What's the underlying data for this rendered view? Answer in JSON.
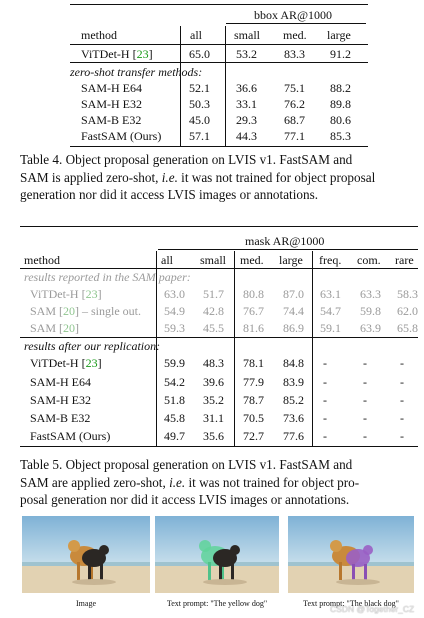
{
  "table4": {
    "header_group": "bbox AR@1000",
    "cols": [
      "method",
      "all",
      "small",
      "med.",
      "large"
    ],
    "section_label": "zero-shot transfer methods:",
    "baseline": {
      "method": "ViTDet-H",
      "cite": "23",
      "values": [
        "65.0",
        "53.2",
        "83.3",
        "91.2"
      ]
    },
    "rows": [
      {
        "method": "SAM-H E64",
        "values": [
          "52.1",
          "36.6",
          "75.1",
          "88.2"
        ]
      },
      {
        "method": "SAM-H E32",
        "values": [
          "50.3",
          "33.1",
          "76.2",
          "89.8"
        ]
      },
      {
        "method": "SAM-B E32",
        "values": [
          "45.0",
          "29.3",
          "68.7",
          "80.6"
        ]
      },
      {
        "method": "FastSAM (Ours)",
        "values": [
          "57.1",
          "44.3",
          "77.1",
          "85.3"
        ]
      }
    ],
    "caption_lines": [
      "Table 4. Object proposal generation on LVIS v1. FastSAM and",
      "SAM is applied zero-shot,",
      " it was not trained for object proposal",
      "generation nor did it access LVIS images or annotations."
    ],
    "caption_ie": "i.e."
  },
  "table5": {
    "header_group": "mask AR@1000",
    "cols": [
      "method",
      "all",
      "small",
      "med.",
      "large",
      "freq.",
      "com.",
      "rare"
    ],
    "section1_label": "results reported in the SAM paper:",
    "section1_rows": [
      {
        "method": "ViTDet-H",
        "cite": "23",
        "suffix": "",
        "values": [
          "63.0",
          "51.7",
          "80.8",
          "87.0",
          "63.1",
          "63.3",
          "58.3"
        ]
      },
      {
        "method": "SAM",
        "cite": "20",
        "suffix": " – single out.",
        "values": [
          "54.9",
          "42.8",
          "76.7",
          "74.4",
          "54.7",
          "59.8",
          "62.0"
        ]
      },
      {
        "method": "SAM",
        "cite": "20",
        "suffix": "",
        "values": [
          "59.3",
          "45.5",
          "81.6",
          "86.9",
          "59.1",
          "63.9",
          "65.8"
        ]
      }
    ],
    "section2_label": "results after our replication:",
    "section2_rows": [
      {
        "method": "ViTDet-H",
        "cite": "23",
        "values": [
          "59.9",
          "48.3",
          "78.1",
          "84.8",
          "-",
          "-",
          "-"
        ]
      },
      {
        "method": "SAM-H E64",
        "values": [
          "54.2",
          "39.6",
          "77.9",
          "83.9",
          "-",
          "-",
          "-"
        ]
      },
      {
        "method": "SAM-H E32",
        "values": [
          "51.8",
          "35.2",
          "78.7",
          "85.2",
          "-",
          "-",
          "-"
        ]
      },
      {
        "method": "SAM-B E32",
        "values": [
          "45.8",
          "31.1",
          "70.5",
          "73.6",
          "-",
          "-",
          "-"
        ]
      },
      {
        "method": "FastSAM (Ours)",
        "values": [
          "49.7",
          "35.6",
          "72.7",
          "77.6",
          "-",
          "-",
          "-"
        ]
      }
    ],
    "caption_lines": [
      "Table 5. Object proposal generation on LVIS v1. FastSAM and",
      "SAM are applied zero-shot,",
      " it was not trained for object pro-",
      "posal generation nor did it access LVIS images or annotations."
    ],
    "caption_ie": "i.e."
  },
  "figure": {
    "labels": [
      "Image",
      "Text prompt: \"The yellow dog\"",
      "Text prompt: \"The black dog\""
    ],
    "watermark": "CSDN @Together_CZ",
    "colors": {
      "sky": "#a9cde3",
      "sand": "#e2d2b2",
      "yellow_mask": "#5fd39a",
      "black_mask": "#9a5fc4"
    }
  }
}
